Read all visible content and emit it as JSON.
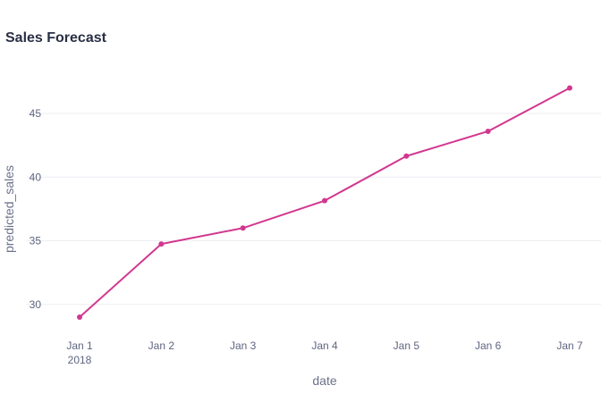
{
  "chart_data": {
    "type": "line",
    "title": "Sales Forecast",
    "xlabel": "date",
    "ylabel": "predicted_sales",
    "x": [
      "2018-01-01",
      "2018-01-02",
      "2018-01-03",
      "2018-01-04",
      "2018-01-05",
      "2018-01-06",
      "2018-01-07"
    ],
    "x_tick_labels": [
      "Jan 1",
      "Jan 2",
      "Jan 3",
      "Jan 4",
      "Jan 5",
      "Jan 6",
      "Jan 7"
    ],
    "x_tick_sublabel": "2018",
    "y_ticks": [
      30,
      35,
      40,
      45
    ],
    "ylim": [
      28.3,
      48.3
    ],
    "grid": "horizontal",
    "color": "#d2378f",
    "series": [
      {
        "values": [
          29.0,
          34.75,
          36.0,
          38.15,
          41.65,
          43.6,
          47.0
        ]
      }
    ]
  }
}
